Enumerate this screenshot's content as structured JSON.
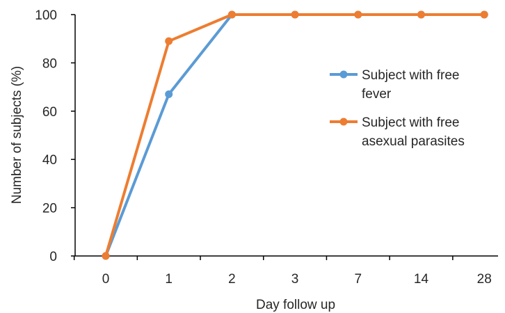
{
  "chart_data": {
    "type": "line",
    "title": "",
    "xlabel": "Day follow up",
    "ylabel": "Number of subjects (%)",
    "categories": [
      "0",
      "1",
      "2",
      "3",
      "7",
      "14",
      "28"
    ],
    "ylim": [
      0,
      100
    ],
    "yticks": [
      "0",
      "20",
      "40",
      "60",
      "80",
      "100"
    ],
    "grid": false,
    "legend_position": "right",
    "series": [
      {
        "name": "Subject with free fever",
        "name_lines": [
          "Subject with free",
          "fever"
        ],
        "color": "#5B9BD5",
        "values": [
          0,
          67,
          100,
          100,
          100,
          100,
          100
        ]
      },
      {
        "name": "Subject with free asexual parasites",
        "name_lines": [
          "Subject with free",
          "asexual parasites"
        ],
        "color": "#ED7D31",
        "values": [
          0,
          89,
          100,
          100,
          100,
          100,
          100
        ]
      }
    ]
  }
}
